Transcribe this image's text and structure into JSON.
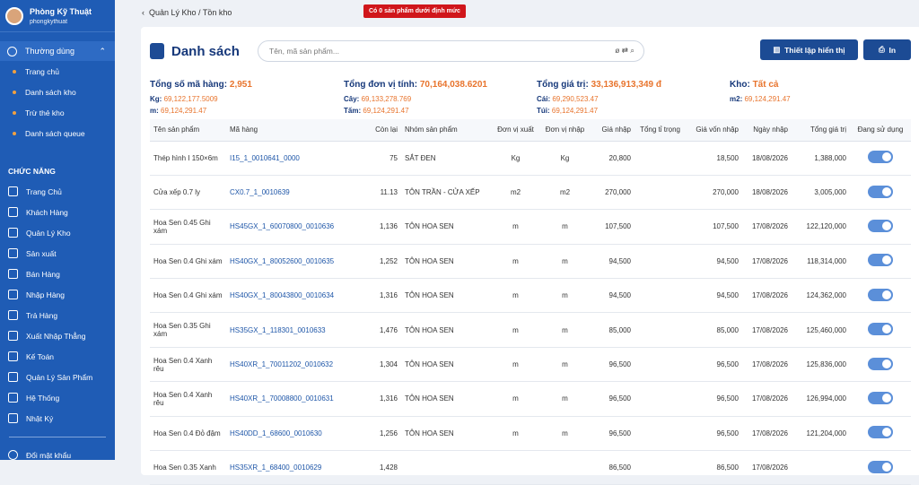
{
  "user": {
    "name": "Phòng Kỹ Thuật",
    "username": "phongkythuat"
  },
  "sidebar": {
    "favorites_title": "Thường dùng",
    "favorites": [
      "Trang chủ",
      "Danh sách kho",
      "Trừ thẻ kho",
      "Danh sách queue"
    ],
    "functions_title": "CHỨC NĂNG",
    "functions": [
      "Trang Chủ",
      "Khách Hàng",
      "Quản Lý Kho",
      "Sản xuất",
      "Bán Hàng",
      "Nhập Hàng",
      "Trả Hàng",
      "Xuất Nhập Thẳng",
      "Kế Toán",
      "Quản Lý Sản Phẩm",
      "Hệ Thống",
      "Nhật Ký"
    ],
    "change_password": "Đổi mật khẩu"
  },
  "breadcrumb": [
    "Quản Lý Kho",
    "Tồn kho"
  ],
  "alert": "Có 0 sản phẩm dưới định mức",
  "header": {
    "title": "Danh sách",
    "search_placeholder": "Tên, mã sản phẩm...",
    "settings_button": "Thiết lập hiển thị",
    "print_button": "In"
  },
  "summary": [
    {
      "label": "Tổng số mã hàng:",
      "value": "2,951",
      "items": [
        [
          "Kg:",
          "69,122,177.5009"
        ],
        [
          "m:",
          "69,124,291.47"
        ]
      ]
    },
    {
      "label": "Tổng đơn vị tính:",
      "value": "70,164,038.6201",
      "items": [
        [
          "Cây:",
          "69,133,278.769"
        ],
        [
          "Tấm:",
          "69,124,291.47"
        ]
      ]
    },
    {
      "label": "Tổng giá trị:",
      "value": "33,136,913,349 đ",
      "items": [
        [
          "Cái:",
          "69,290,523.47"
        ],
        [
          "Túi:",
          "69,124,291.47"
        ]
      ]
    },
    {
      "label": "Kho:",
      "value": "Tất cả",
      "items": [
        [
          "m2:",
          "69,124,291.47"
        ]
      ]
    }
  ],
  "table": {
    "columns": [
      "Tên sản phẩm",
      "Mã hàng",
      "Còn lại",
      "Nhóm sản phẩm",
      "Đơn vị xuất",
      "Đơn vị nhập",
      "Giá nhập",
      "Tổng tỉ trọng",
      "Giá vốn nhập",
      "Ngày nhập",
      "Tổng giá trị",
      "Đang sử dụng"
    ],
    "rows": [
      [
        "Thép hình I 150×6m",
        "I15_1_0010641_0000",
        "75",
        "SẮT ĐEN",
        "Kg",
        "Kg",
        "20,800",
        "18,500",
        "18/08/2026",
        "1,388,000"
      ],
      [
        "Cửa xếp 0.7 ly",
        "CX0.7_1_0010639",
        "11.13",
        "TÔN TRẦN - CỬA XẾP",
        "m2",
        "m2",
        "270,000",
        "270,000",
        "18/08/2026",
        "3,005,000"
      ],
      [
        "Hoa Sen 0.45 Ghi xám",
        "HS45GX_1_60070800_0010636",
        "1,136",
        "TÔN HOA SEN",
        "m",
        "m",
        "107,500",
        "107,500",
        "17/08/2026",
        "122,120,000"
      ],
      [
        "Hoa Sen 0.4 Ghi xám",
        "HS40GX_1_80052600_0010635",
        "1,252",
        "TÔN HOA SEN",
        "m",
        "m",
        "94,500",
        "94,500",
        "17/08/2026",
        "118,314,000"
      ],
      [
        "Hoa Sen 0.4 Ghi xám",
        "HS40GX_1_80043800_0010634",
        "1,316",
        "TÔN HOA SEN",
        "m",
        "m",
        "94,500",
        "94,500",
        "17/08/2026",
        "124,362,000"
      ],
      [
        "Hoa Sen 0.35 Ghi xám",
        "HS35GX_1_118301_0010633",
        "1,476",
        "TÔN HOA SEN",
        "m",
        "m",
        "85,000",
        "85,000",
        "17/08/2026",
        "125,460,000"
      ],
      [
        "Hoa Sen 0.4 Xanh rêu",
        "HS40XR_1_70011202_0010632",
        "1,304",
        "TÔN HOA SEN",
        "m",
        "m",
        "96,500",
        "96,500",
        "17/08/2026",
        "125,836,000"
      ],
      [
        "Hoa Sen 0.4 Xanh rêu",
        "HS40XR_1_70008800_0010631",
        "1,316",
        "TÔN HOA SEN",
        "m",
        "m",
        "96,500",
        "96,500",
        "17/08/2026",
        "126,994,000"
      ],
      [
        "Hoa Sen 0.4 Đỏ đậm",
        "HS40DD_1_68600_0010630",
        "1,256",
        "TÔN HOA SEN",
        "m",
        "m",
        "96,500",
        "96,500",
        "17/08/2026",
        "121,204,000"
      ],
      [
        "Hoa Sen 0.35 Xanh",
        "HS35XR_1_68400_0010629",
        "1,428",
        null,
        null,
        null,
        "86,500",
        "86,500",
        "17/08/2026",
        null
      ]
    ],
    "active": [
      true,
      true,
      true,
      true,
      true,
      true,
      true,
      true,
      true,
      true
    ]
  }
}
